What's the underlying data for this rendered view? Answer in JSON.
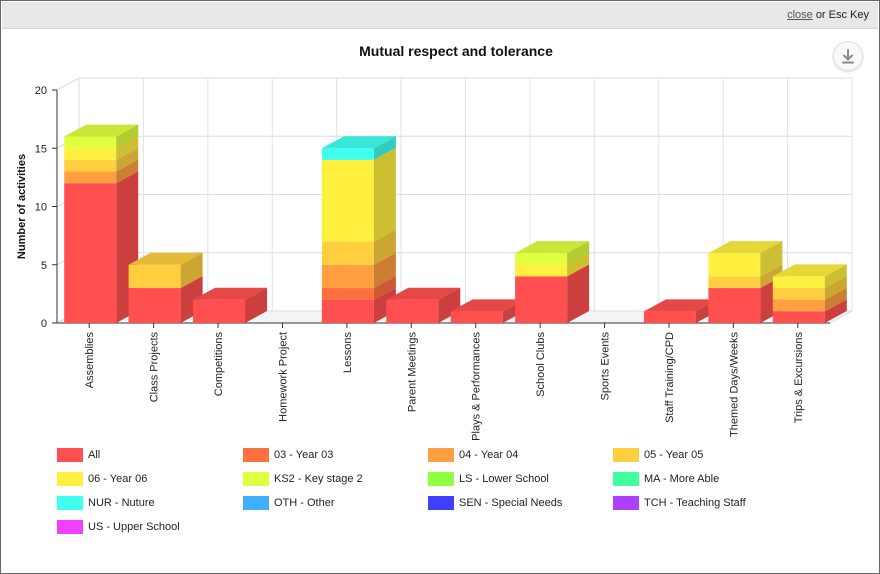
{
  "topbar": {
    "close_label": "close",
    "close_suffix": "or Esc Key"
  },
  "download_icon": "download-icon",
  "chart_data": {
    "type": "bar",
    "stacked": true,
    "three_d": true,
    "title": "Mutual respect and tolerance",
    "xlabel": "",
    "ylabel": "Number of activities",
    "ylim": [
      0,
      20
    ],
    "yticks": [
      0,
      5,
      10,
      15,
      20
    ],
    "grid": true,
    "legend_position": "bottom",
    "categories": [
      "Assemblies",
      "Class Projects",
      "Competitions",
      "Homework Project",
      "Lessons",
      "Parent Meetings",
      "Plays & Performances",
      "School Clubs",
      "Sports Events",
      "Staff Training/CPD",
      "Themed Days/Weeks",
      "Trips & Excursions"
    ],
    "series": [
      {
        "name": "All",
        "color": "#ff4f4f",
        "values": [
          12,
          3,
          2,
          0,
          2,
          2,
          1,
          4,
          0,
          1,
          3,
          1
        ]
      },
      {
        "name": "03 - Year 03",
        "color": "#ff6f3f",
        "values": [
          0,
          0,
          0,
          0,
          1,
          0,
          0,
          0,
          0,
          0,
          0,
          0
        ]
      },
      {
        "name": "04 - Year 04",
        "color": "#ff9f3f",
        "values": [
          1,
          0,
          0,
          0,
          2,
          0,
          0,
          0,
          0,
          0,
          0,
          1
        ]
      },
      {
        "name": "05 - Year 05",
        "color": "#ffcf3f",
        "values": [
          1,
          2,
          0,
          0,
          2,
          0,
          0,
          0,
          0,
          0,
          1,
          1
        ]
      },
      {
        "name": "06 - Year 06",
        "color": "#ffef3f",
        "values": [
          1,
          0,
          0,
          0,
          7,
          0,
          0,
          1,
          0,
          0,
          2,
          1
        ]
      },
      {
        "name": "KS2 - Key stage 2",
        "color": "#dfff3f",
        "values": [
          1,
          0,
          0,
          0,
          0,
          0,
          0,
          1,
          0,
          0,
          0,
          0
        ]
      },
      {
        "name": "LS - Lower School",
        "color": "#8fff3f",
        "values": [
          0,
          0,
          0,
          0,
          0,
          0,
          0,
          0,
          0,
          0,
          0,
          0
        ]
      },
      {
        "name": "MA - More Able",
        "color": "#3fff9f",
        "values": [
          0,
          0,
          0,
          0,
          0,
          0,
          0,
          0,
          0,
          0,
          0,
          0
        ]
      },
      {
        "name": "NUR - Nuture",
        "color": "#3fffef",
        "values": [
          0,
          0,
          0,
          0,
          1,
          0,
          0,
          0,
          0,
          0,
          0,
          0
        ]
      },
      {
        "name": "OTH - Other",
        "color": "#3fafff",
        "values": [
          0,
          0,
          0,
          0,
          0,
          0,
          0,
          0,
          0,
          0,
          0,
          0
        ]
      },
      {
        "name": "SEN - Special Needs",
        "color": "#3f3fff",
        "values": [
          0,
          0,
          0,
          0,
          0,
          0,
          0,
          0,
          0,
          0,
          0,
          0
        ]
      },
      {
        "name": "TCH - Teaching Staff",
        "color": "#af3fff",
        "values": [
          0,
          0,
          0,
          0,
          0,
          0,
          0,
          0,
          0,
          0,
          0,
          0
        ]
      },
      {
        "name": "US - Upper School",
        "color": "#ef3fff",
        "values": [
          0,
          0,
          0,
          0,
          0,
          0,
          0,
          0,
          0,
          0,
          0,
          0
        ]
      }
    ]
  }
}
